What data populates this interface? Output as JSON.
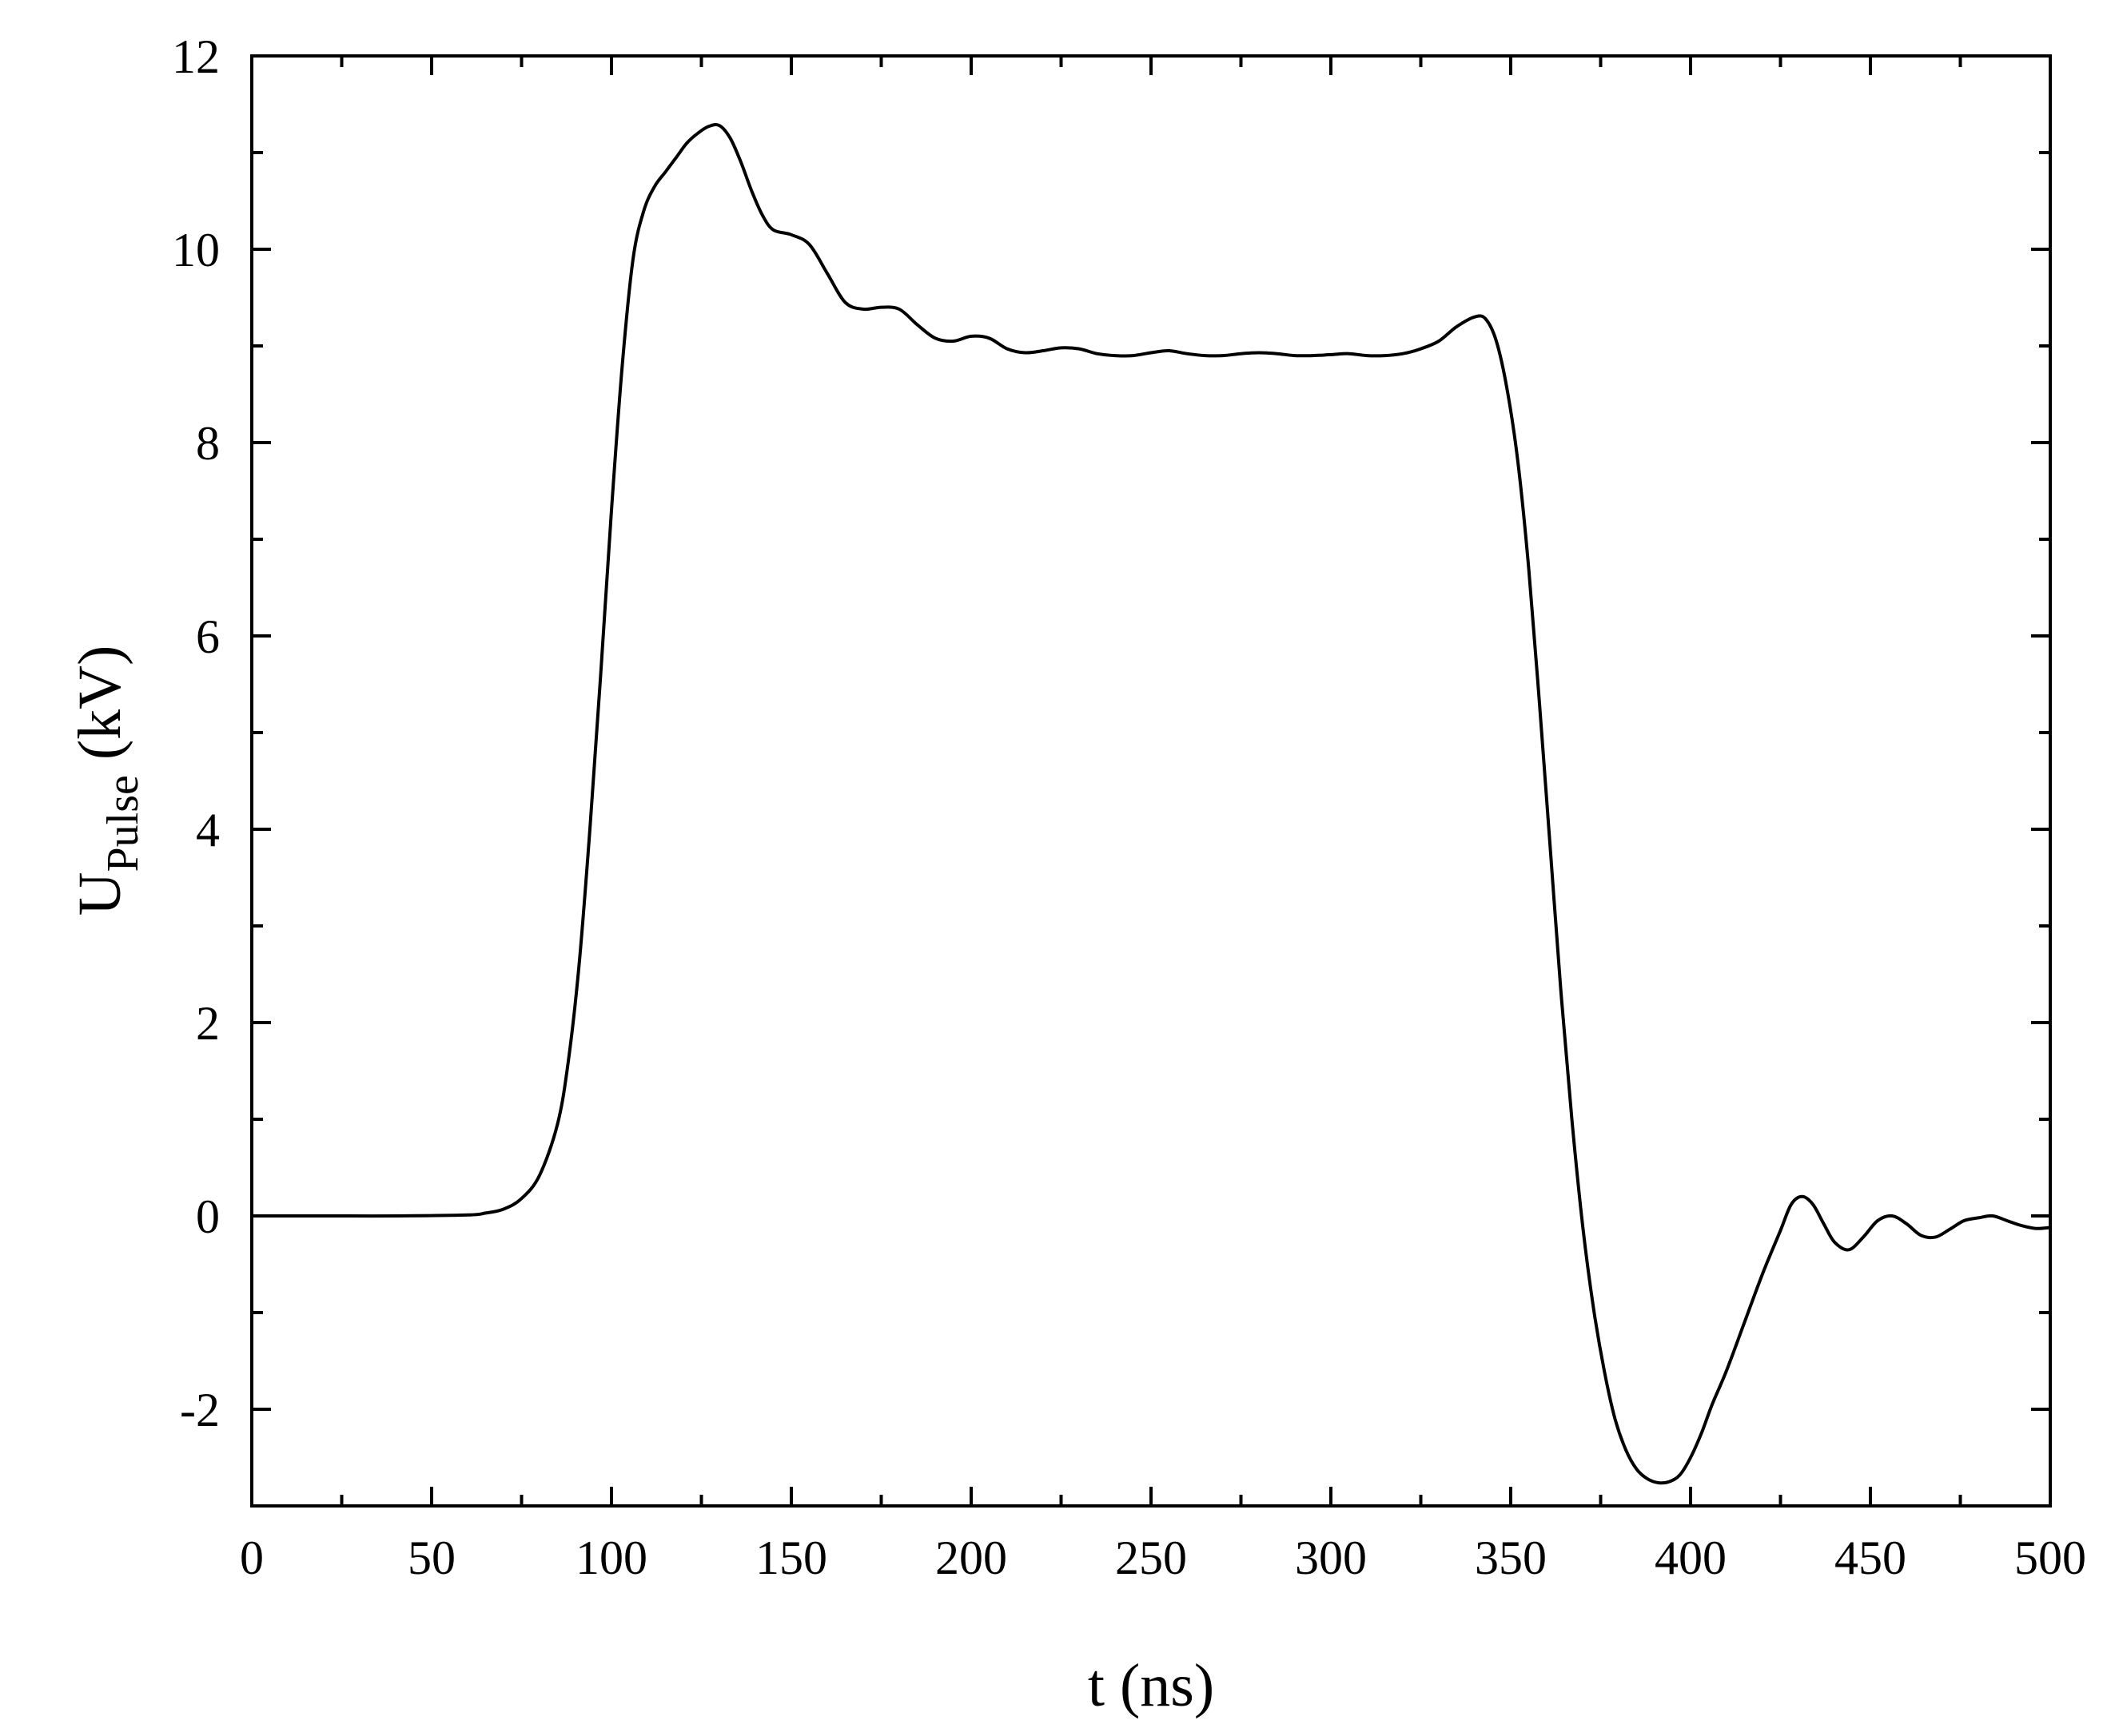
{
  "chart_data": {
    "type": "line",
    "title": "",
    "xlabel": "t (ns)",
    "ylabel": {
      "base": "U",
      "subscript": "Pulse",
      "unit": " (kV)"
    },
    "xlim": [
      0,
      500
    ],
    "ylim": [
      -3,
      12
    ],
    "x_ticks": [
      "0",
      "50",
      "100",
      "150",
      "200",
      "250",
      "300",
      "350",
      "400",
      "450",
      "500"
    ],
    "y_ticks": [
      "-2",
      "0",
      "2",
      "4",
      "6",
      "8",
      "10",
      "12"
    ],
    "grid": false,
    "legend": "none",
    "line_color": "#000000",
    "series": [
      {
        "x": [
          0,
          20,
          40,
          60,
          65,
          70,
          75,
          80,
          85,
          88,
          91,
          94,
          97,
          100,
          103,
          106,
          109,
          112,
          115,
          118,
          121,
          124,
          127,
          130,
          133,
          136,
          139,
          142,
          145,
          150,
          155,
          160,
          165,
          170,
          175,
          180,
          185,
          190,
          195,
          200,
          205,
          210,
          215,
          220,
          225,
          230,
          235,
          240,
          245,
          250,
          255,
          260,
          265,
          270,
          275,
          280,
          285,
          290,
          295,
          300,
          305,
          310,
          315,
          320,
          325,
          330,
          335,
          340,
          343,
          346,
          349,
          352,
          355,
          358,
          361,
          364,
          367,
          370,
          373,
          376,
          379,
          382,
          385,
          388,
          391,
          394,
          397,
          400,
          403,
          406,
          410,
          415,
          420,
          425,
          428,
          431,
          434,
          437,
          440,
          444,
          448,
          452,
          456,
          460,
          464,
          468,
          472,
          476,
          480,
          484,
          488,
          492,
          496,
          500
        ],
        "y": [
          0,
          0,
          0,
          0.01,
          0.03,
          0.07,
          0.18,
          0.42,
          0.95,
          1.6,
          2.6,
          4.0,
          5.6,
          7.3,
          8.8,
          9.9,
          10.4,
          10.65,
          10.8,
          10.95,
          11.1,
          11.2,
          11.27,
          11.28,
          11.15,
          10.9,
          10.6,
          10.35,
          10.2,
          10.15,
          10.05,
          9.75,
          9.45,
          9.38,
          9.4,
          9.38,
          9.22,
          9.08,
          9.05,
          9.1,
          9.08,
          8.97,
          8.93,
          8.95,
          8.98,
          8.97,
          8.92,
          8.9,
          8.9,
          8.93,
          8.95,
          8.92,
          8.9,
          8.9,
          8.92,
          8.93,
          8.92,
          8.9,
          8.9,
          8.91,
          8.92,
          8.9,
          8.9,
          8.92,
          8.97,
          9.05,
          9.2,
          9.3,
          9.28,
          9.05,
          8.55,
          7.8,
          6.7,
          5.3,
          3.8,
          2.3,
          1.0,
          -0.1,
          -0.95,
          -1.6,
          -2.1,
          -2.42,
          -2.62,
          -2.72,
          -2.76,
          -2.75,
          -2.68,
          -2.5,
          -2.25,
          -1.95,
          -1.6,
          -1.1,
          -0.6,
          -0.15,
          0.12,
          0.2,
          0.12,
          -0.08,
          -0.27,
          -0.35,
          -0.22,
          -0.05,
          0,
          -0.08,
          -0.2,
          -0.22,
          -0.14,
          -0.05,
          -0.02,
          0,
          -0.05,
          -0.1,
          -0.13,
          -0.12
        ]
      }
    ]
  }
}
